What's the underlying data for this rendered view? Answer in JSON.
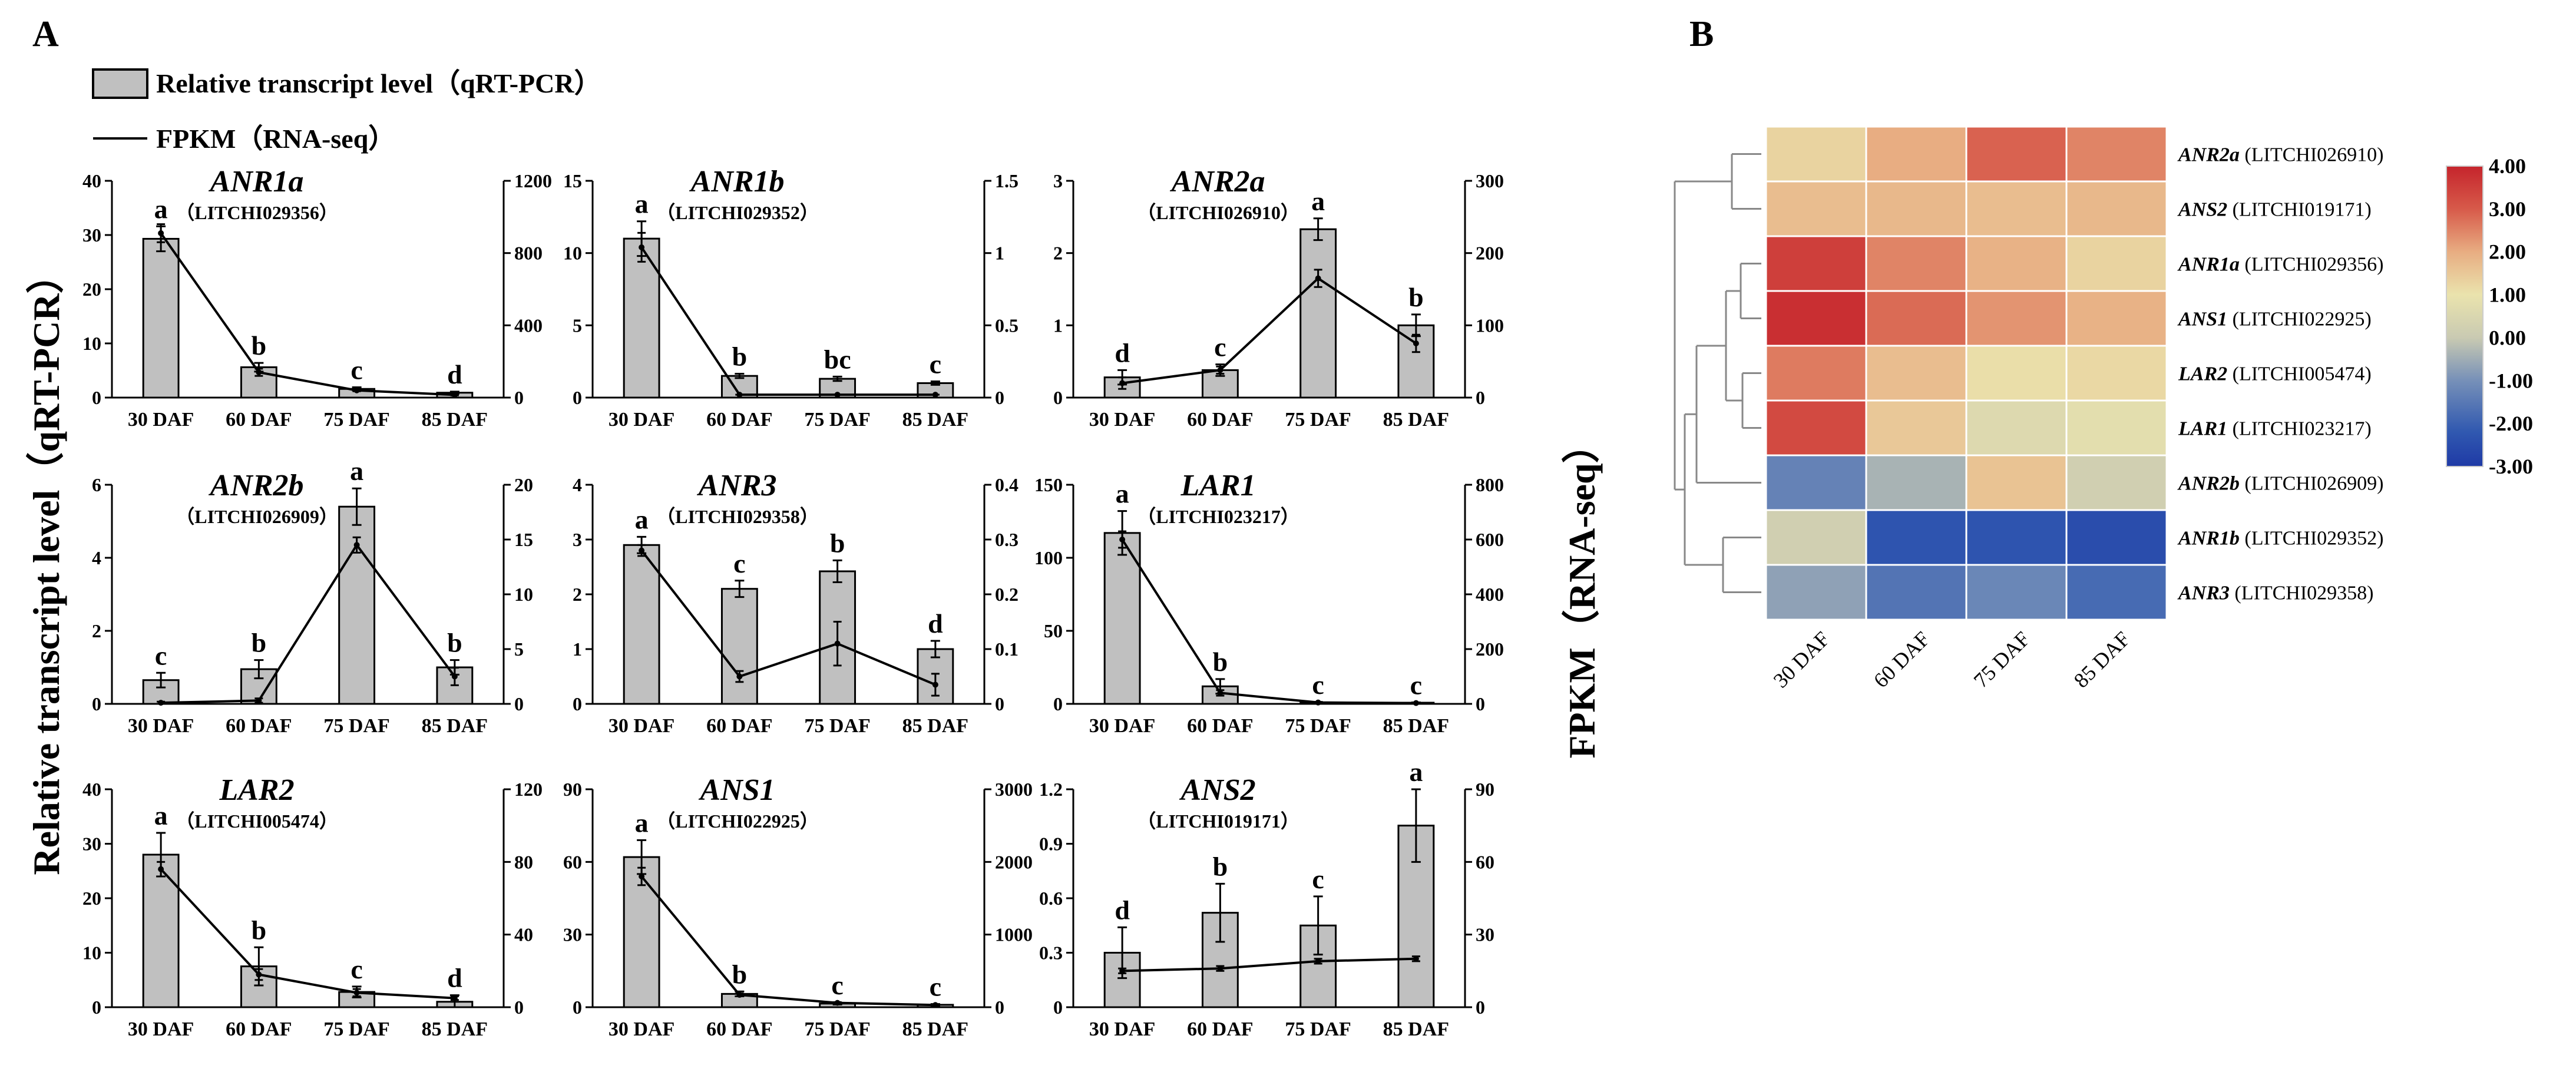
{
  "panel_a_label": "A",
  "panel_b_label": "B",
  "legend": {
    "bar_label": "Relative transcript level（qRT-PCR）",
    "line_label": "FPKM（RNA-seq）"
  },
  "y_left_title": "Relative transcript level（qRT-PCR）",
  "y_right_title": "FPKM（RNA-seq）",
  "colors": {
    "bar_fill": "#c0c0c0",
    "bar_stroke": "#000000",
    "line": "#000000"
  },
  "chart_data": [
    {
      "type": "bar+line",
      "gene": "ANR1a",
      "id": "（LITCHI029356）",
      "categories": [
        "30 DAF",
        "60 DAF",
        "75 DAF",
        "85 DAF"
      ],
      "qpcr": [
        29.3,
        5.6,
        1.6,
        0.9
      ],
      "qpcr_err": [
        2.3,
        0.8,
        0.3,
        0.2
      ],
      "letters": [
        "a",
        "b",
        "c",
        "d"
      ],
      "fpkm": [
        910,
        140,
        40,
        15
      ],
      "fpkm_err": [
        50,
        20,
        5,
        3
      ],
      "ylim_left": [
        0,
        40
      ],
      "yticks_left": [
        0,
        10,
        20,
        30,
        40
      ],
      "ylim_right": [
        0,
        1200
      ],
      "yticks_right": [
        0,
        400,
        800,
        1200
      ],
      "ytick_labels_left": [
        "0",
        "10",
        "20",
        "30",
        "40"
      ],
      "ytick_labels_right": [
        "0",
        "400",
        "800",
        "1200"
      ]
    },
    {
      "type": "bar+line",
      "gene": "ANR1b",
      "id": "（LITCHI029352）",
      "categories": [
        "30 DAF",
        "60 DAF",
        "75 DAF",
        "85 DAF"
      ],
      "qpcr": [
        11.0,
        1.5,
        1.3,
        1.0
      ],
      "qpcr_err": [
        1.2,
        0.15,
        0.15,
        0.12
      ],
      "letters": [
        "a",
        "b",
        "bc",
        "c"
      ],
      "fpkm": [
        1.04,
        0.02,
        0.02,
        0.02
      ],
      "fpkm_err": [
        0.1,
        0.0,
        0.0,
        0.0
      ],
      "ylim_left": [
        0,
        15
      ],
      "yticks_left": [
        0,
        5,
        10,
        15
      ],
      "ylim_right": [
        0,
        1.5
      ],
      "yticks_right": [
        0,
        0.5,
        1,
        1.5
      ],
      "ytick_labels_left": [
        "0",
        "5",
        "10",
        "15"
      ],
      "ytick_labels_right": [
        "0",
        "0.5",
        "1",
        "1.5"
      ]
    },
    {
      "type": "bar+line",
      "gene": "ANR2a",
      "id": "（LITCHI026910）",
      "categories": [
        "30 DAF",
        "60 DAF",
        "75 DAF",
        "85 DAF"
      ],
      "qpcr": [
        0.28,
        0.38,
        2.33,
        1.0
      ],
      "qpcr_err": [
        0.1,
        0.08,
        0.15,
        0.15
      ],
      "letters": [
        "d",
        "c",
        "a",
        "b"
      ],
      "fpkm": [
        20,
        38,
        165,
        75
      ],
      "fpkm_err": [
        8,
        5,
        12,
        12
      ],
      "ylim_left": [
        0,
        3
      ],
      "yticks_left": [
        0,
        1,
        2,
        3
      ],
      "ylim_right": [
        0,
        300
      ],
      "yticks_right": [
        0,
        100,
        200,
        300
      ],
      "ytick_labels_left": [
        "0",
        "1",
        "2",
        "3"
      ],
      "ytick_labels_right": [
        "0",
        "100",
        "200",
        "300"
      ]
    },
    {
      "type": "bar+line",
      "gene": "ANR2b",
      "id": "（LITCHI026909）",
      "categories": [
        "30 DAF",
        "60 DAF",
        "75 DAF",
        "85 DAF"
      ],
      "qpcr": [
        0.65,
        0.95,
        5.4,
        1.0
      ],
      "qpcr_err": [
        0.2,
        0.25,
        0.5,
        0.2
      ],
      "letters": [
        "c",
        "b",
        "a",
        "b"
      ],
      "fpkm": [
        0.1,
        0.3,
        14.5,
        2.5
      ],
      "fpkm_err": [
        0.1,
        0.2,
        0.7,
        0.8
      ],
      "ylim_left": [
        0,
        6
      ],
      "yticks_left": [
        0,
        2,
        4,
        6
      ],
      "ylim_right": [
        0,
        20
      ],
      "yticks_right": [
        0,
        5,
        10,
        15,
        20
      ],
      "ytick_labels_left": [
        "0",
        "2",
        "4",
        "6"
      ],
      "ytick_labels_right": [
        "0",
        "5",
        "10",
        "15",
        "20"
      ]
    },
    {
      "type": "bar+line",
      "gene": "ANR3",
      "id": "（LITCHI029358）",
      "categories": [
        "30 DAF",
        "60 DAF",
        "75 DAF",
        "85 DAF"
      ],
      "qpcr": [
        2.9,
        2.1,
        2.42,
        1.0
      ],
      "qpcr_err": [
        0.15,
        0.15,
        0.2,
        0.15
      ],
      "letters": [
        "a",
        "c",
        "b",
        "d"
      ],
      "fpkm": [
        0.28,
        0.05,
        0.11,
        0.035
      ],
      "fpkm_err": [
        0.01,
        0.01,
        0.04,
        0.02
      ],
      "ylim_left": [
        0,
        4
      ],
      "yticks_left": [
        0,
        1,
        2,
        3,
        4
      ],
      "ylim_right": [
        0,
        0.4
      ],
      "yticks_right": [
        0,
        0.1,
        0.2,
        0.3,
        0.4
      ],
      "ytick_labels_left": [
        "0",
        "1",
        "2",
        "3",
        "4"
      ],
      "ytick_labels_right": [
        "0",
        "0.1",
        "0.2",
        "0.3",
        "0.4"
      ]
    },
    {
      "type": "bar+line",
      "gene": "LAR1",
      "id": "（LITCHI023217）",
      "categories": [
        "30 DAF",
        "60 DAF",
        "75 DAF",
        "85 DAF"
      ],
      "qpcr": [
        117,
        12,
        1.0,
        0.8
      ],
      "qpcr_err": [
        15,
        5,
        0.3,
        0.2
      ],
      "letters": [
        "a",
        "b",
        "c",
        "c"
      ],
      "fpkm": [
        600,
        40,
        5,
        3
      ],
      "fpkm_err": [
        30,
        10,
        2,
        1
      ],
      "ylim_left": [
        0,
        150
      ],
      "yticks_left": [
        0,
        50,
        100,
        150
      ],
      "ylim_right": [
        0,
        800
      ],
      "yticks_right": [
        0,
        200,
        400,
        600,
        800
      ],
      "ytick_labels_left": [
        "0",
        "50",
        "100",
        "150"
      ],
      "ytick_labels_right": [
        "0",
        "200",
        "400",
        "600",
        "800"
      ]
    },
    {
      "type": "bar+line",
      "gene": "LAR2",
      "id": "（LITCHI005474）",
      "categories": [
        "30 DAF",
        "60 DAF",
        "75 DAF",
        "85 DAF"
      ],
      "qpcr": [
        28,
        7.5,
        2.8,
        1.0
      ],
      "qpcr_err": [
        4,
        3.5,
        1,
        1.2
      ],
      "letters": [
        "a",
        "b",
        "c",
        "d"
      ],
      "fpkm": [
        76,
        18,
        8,
        5
      ],
      "fpkm_err": [
        4,
        3,
        2,
        1
      ],
      "ylim_left": [
        0,
        40
      ],
      "yticks_left": [
        0,
        10,
        20,
        30,
        40
      ],
      "ylim_right": [
        0,
        120
      ],
      "yticks_right": [
        0,
        40,
        80,
        120
      ],
      "ytick_labels_left": [
        "0",
        "10",
        "20",
        "30",
        "40"
      ],
      "ytick_labels_right": [
        "0",
        "40",
        "80",
        "120"
      ]
    },
    {
      "type": "bar+line",
      "gene": "ANS1",
      "id": "（LITCHI022925）",
      "categories": [
        "30 DAF",
        "60 DAF",
        "75 DAF",
        "85 DAF"
      ],
      "qpcr": [
        62,
        5.5,
        1.5,
        1.0
      ],
      "qpcr_err": [
        7,
        1,
        0.4,
        0.3
      ],
      "letters": [
        "a",
        "b",
        "c",
        "c"
      ],
      "fpkm": [
        1800,
        170,
        60,
        30
      ],
      "fpkm_err": [
        120,
        20,
        10,
        5
      ],
      "ylim_left": [
        0,
        90
      ],
      "yticks_left": [
        0,
        30,
        60,
        90
      ],
      "ylim_right": [
        0,
        3000
      ],
      "yticks_right": [
        0,
        1000,
        2000,
        3000
      ],
      "ytick_labels_left": [
        "0",
        "30",
        "60",
        "90"
      ],
      "ytick_labels_right": [
        "0",
        "1000",
        "2000",
        "3000"
      ]
    },
    {
      "type": "bar+line",
      "gene": "ANS2",
      "id": "（LITCHI019171）",
      "categories": [
        "30 DAF",
        "60 DAF",
        "75 DAF",
        "85 DAF"
      ],
      "qpcr": [
        0.3,
        0.52,
        0.45,
        1.0
      ],
      "qpcr_err": [
        0.14,
        0.16,
        0.16,
        0.2
      ],
      "letters": [
        "d",
        "b",
        "c",
        "a"
      ],
      "fpkm": [
        15,
        16,
        19,
        20
      ],
      "fpkm_err": [
        1,
        1,
        1,
        1
      ],
      "ylim_left": [
        0,
        1.2
      ],
      "yticks_left": [
        0,
        0.3,
        0.6,
        0.9,
        1.2
      ],
      "ylim_right": [
        0,
        90
      ],
      "yticks_right": [
        0,
        30,
        60,
        90
      ],
      "ytick_labels_left": [
        "0",
        "0.3",
        "0.6",
        "0.9",
        "1.2"
      ],
      "ytick_labels_right": [
        "0",
        "30",
        "60",
        "90"
      ]
    },
    {
      "type": "heatmap",
      "rows": [
        {
          "gene": "ANR2a",
          "id": " (LITCHI026910)"
        },
        {
          "gene": "ANS2",
          "id": " (LITCHI019171)"
        },
        {
          "gene": "ANR1a",
          "id": " (LITCHI029356)"
        },
        {
          "gene": "ANS1",
          "id": " (LITCHI022925)"
        },
        {
          "gene": "LAR2",
          "id": " (LITCHI005474)"
        },
        {
          "gene": "LAR1",
          "id": " (LITCHI023217)"
        },
        {
          "gene": "ANR2b",
          "id": " (LITCHI026909)"
        },
        {
          "gene": "ANR1b",
          "id": " (LITCHI029352)"
        },
        {
          "gene": "ANR3",
          "id": " (LITCHI029358)"
        }
      ],
      "columns": [
        "30 DAF",
        "60 DAF",
        "75 DAF",
        "85 DAF"
      ],
      "values": [
        [
          1.3,
          2.0,
          2.9,
          2.5
        ],
        [
          1.7,
          1.8,
          1.7,
          1.8
        ],
        [
          3.5,
          2.5,
          1.9,
          1.3
        ],
        [
          3.8,
          2.8,
          2.3,
          1.9
        ],
        [
          2.6,
          1.7,
          1.1,
          1.2
        ],
        [
          3.3,
          1.5,
          0.6,
          0.8
        ],
        [
          -1.3,
          -0.4,
          1.6,
          0.2
        ],
        [
          0.2,
          -2.3,
          -2.3,
          -2.5
        ],
        [
          -0.7,
          -1.6,
          -1.2,
          -1.8
        ]
      ],
      "colorbar": {
        "range": [
          -3,
          4
        ],
        "ticks": [
          4,
          3,
          2,
          1,
          0,
          -1,
          -2,
          -3
        ],
        "tick_labels": [
          "4.00",
          "3.00",
          "2.00",
          "1.00",
          "0.00",
          "-1.00",
          "-2.00",
          "-3.00"
        ],
        "stops": [
          {
            "v": -3,
            "c": "#1f3aa6"
          },
          {
            "v": -2.2,
            "c": "#3058b0"
          },
          {
            "v": -1,
            "c": "#7690b8"
          },
          {
            "v": 0,
            "c": "#c9cab2"
          },
          {
            "v": 1,
            "c": "#eae3ad"
          },
          {
            "v": 2,
            "c": "#e8ad82"
          },
          {
            "v": 3,
            "c": "#d75a4a"
          },
          {
            "v": 4,
            "c": "#c5242c"
          }
        ]
      }
    }
  ]
}
